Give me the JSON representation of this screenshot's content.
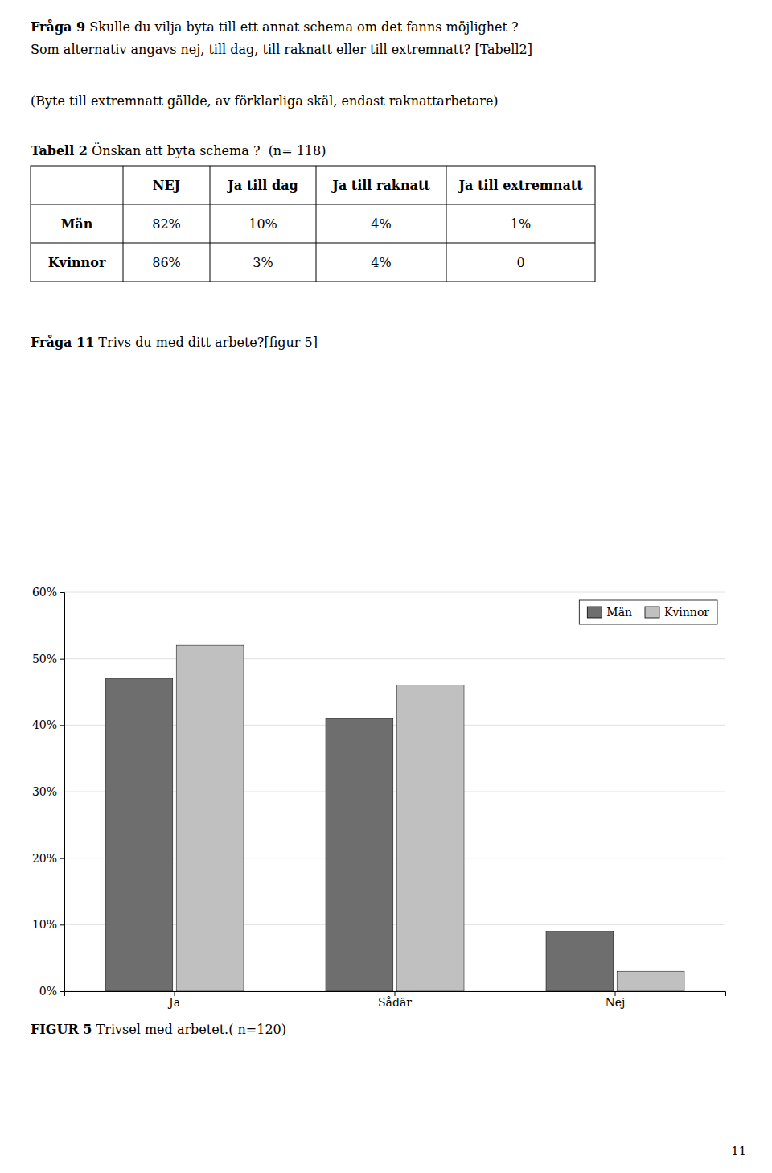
{
  "page": {
    "question9": {
      "bold": "Fråga 9",
      "text": " Skulle du vilja byta till ett annat schema om det fanns möjlighet ?"
    },
    "question9_sub": "Som alternativ angavs nej, till dag, till raknatt eller till extremnatt? [Tabell2]",
    "note": "(Byte till extremnatt gällde, av förklarliga skäl, endast raknattarbetare)",
    "table_heading": {
      "bold": "Tabell 2",
      "text": " Önskan att byta schema ?  (n= 118)"
    },
    "question11": {
      "bold": "Fråga 11",
      "text": " Trivs du med ditt arbete?[figur 5]"
    },
    "page_number": "11"
  },
  "table": {
    "headers": [
      null,
      "NEJ",
      "Ja till dag",
      "Ja till raknatt",
      "Ja till extremnatt"
    ],
    "rows": [
      [
        "Män",
        "82%",
        "10%",
        "4%",
        "1%"
      ],
      [
        "Kvinnor",
        "86%",
        "3%",
        "4%",
        "0"
      ]
    ]
  },
  "chart_data": {
    "type": "bar",
    "caption": {
      "bold": "FIGUR 5",
      "text": " Trivsel med arbetet.( n=120)"
    },
    "categories": [
      "Ja",
      "Sådär",
      "Nej"
    ],
    "series": [
      {
        "name": "Män",
        "color": "#6e6e6e",
        "values": [
          47,
          41,
          9
        ]
      },
      {
        "name": "Kvinnor",
        "color": "#c0c0c0",
        "values": [
          52,
          46,
          3
        ]
      }
    ],
    "ylim": [
      0,
      60
    ],
    "yticks": [
      {
        "value": 0,
        "label": "0%"
      },
      {
        "value": 10,
        "label": "10%"
      },
      {
        "value": 20,
        "label": "20%"
      },
      {
        "value": 30,
        "label": "30%"
      },
      {
        "value": 40,
        "label": "40%"
      },
      {
        "value": 50,
        "label": "50%"
      },
      {
        "value": 60,
        "label": "60%"
      }
    ],
    "grid": true,
    "legend": "upper right"
  }
}
